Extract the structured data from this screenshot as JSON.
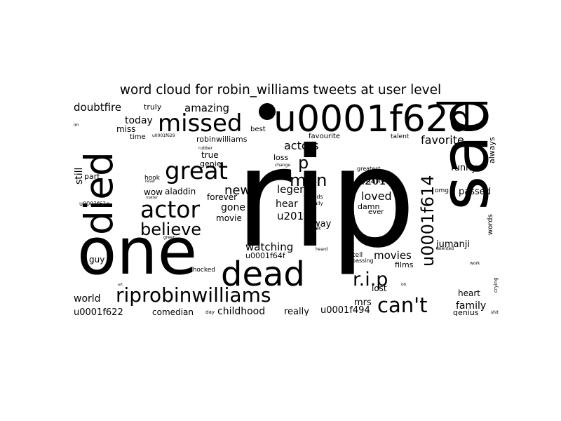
{
  "title": "word cloud for robin_williams tweets at user level",
  "ink_color": "#000000",
  "words": [
    {
      "text": "rip",
      "weight": 100
    },
    {
      "text": "sad",
      "weight": 60
    },
    {
      "text": "one",
      "weight": 58
    },
    {
      "text": "died",
      "weight": 44
    },
    {
      "text": "u0001f62d",
      "weight": 40
    },
    {
      "text": "dead",
      "weight": 36
    },
    {
      "text": "missed",
      "weight": 28
    },
    {
      "text": "great",
      "weight": 26
    },
    {
      "text": "actor",
      "weight": 26
    },
    {
      "text": "riprobinwilliams",
      "weight": 25
    },
    {
      "text": "can't",
      "weight": 24
    },
    {
      "text": "r.i.p",
      "weight": 24
    },
    {
      "text": "believe",
      "weight": 20
    },
    {
      "text": "u0001f614",
      "weight": 19
    },
    {
      "text": "man",
      "weight": 18
    },
    {
      "text": "p",
      "weight": 18
    },
    {
      "text": "news",
      "weight": 15
    },
    {
      "text": "favorite",
      "weight": 14
    },
    {
      "text": "loved",
      "weight": 13
    },
    {
      "text": "u201c",
      "weight": 13
    },
    {
      "text": "actors",
      "weight": 13
    },
    {
      "text": "watching",
      "weight": 12
    },
    {
      "text": "u201d",
      "weight": 12
    },
    {
      "text": "legend",
      "weight": 12
    },
    {
      "text": "movies",
      "weight": 12
    },
    {
      "text": "doubtfire",
      "weight": 12
    },
    {
      "text": "amazing",
      "weight": 12
    },
    {
      "text": "today",
      "weight": 11
    },
    {
      "text": "still",
      "weight": 11
    },
    {
      "text": "family",
      "weight": 11
    },
    {
      "text": "world",
      "weight": 11
    },
    {
      "text": "childhood",
      "weight": 11
    },
    {
      "text": "gone",
      "weight": 11
    },
    {
      "text": "hear",
      "weight": 11
    },
    {
      "text": "jumanji",
      "weight": 10
    },
    {
      "text": "u0001f622",
      "weight": 10
    },
    {
      "text": "mrs",
      "weight": 10
    },
    {
      "text": "really",
      "weight": 10
    },
    {
      "text": "u0001f494",
      "weight": 10
    },
    {
      "text": "away",
      "weight": 10
    },
    {
      "text": "passed",
      "weight": 10
    },
    {
      "text": "funny",
      "weight": 9
    },
    {
      "text": "always",
      "weight": 9
    },
    {
      "text": "heart",
      "weight": 9
    },
    {
      "text": "lost",
      "weight": 9
    },
    {
      "text": "comedian",
      "weight": 9
    },
    {
      "text": "movie",
      "weight": 9
    },
    {
      "text": "miss",
      "weight": 9
    },
    {
      "text": "wow",
      "weight": 9
    },
    {
      "text": "aladdin",
      "weight": 9
    },
    {
      "text": "guy",
      "weight": 9
    },
    {
      "text": "true",
      "weight": 8
    },
    {
      "text": "forever",
      "weight": 8
    },
    {
      "text": "u0001f64f",
      "weight": 8
    },
    {
      "text": "truly",
      "weight": 8
    },
    {
      "text": "robinwilliams",
      "weight": 8
    },
    {
      "text": "films",
      "weight": 8
    },
    {
      "text": "words",
      "weight": 8
    },
    {
      "text": "loss",
      "weight": 8
    },
    {
      "text": "genie",
      "weight": 8
    },
    {
      "text": "many",
      "weight": 8
    },
    {
      "text": "genius",
      "weight": 8
    },
    {
      "text": "damn",
      "weight": 8
    },
    {
      "text": "favourite",
      "weight": 7
    },
    {
      "text": "time",
      "weight": 7
    },
    {
      "text": "best",
      "weight": 7
    },
    {
      "text": "ever",
      "weight": 7
    },
    {
      "text": "talent",
      "weight": 7
    },
    {
      "text": "part",
      "weight": 7
    },
    {
      "text": "shocked",
      "weight": 7
    },
    {
      "text": "hook",
      "weight": 6
    },
    {
      "text": "omg",
      "weight": 6
    },
    {
      "text": "tell",
      "weight": 6
    },
    {
      "text": "passing",
      "weight": 6
    },
    {
      "text": "u0001f61e",
      "weight": 6
    },
    {
      "text": "day",
      "weight": 6
    },
    {
      "text": "greatest",
      "weight": 6
    },
    {
      "text": "friends",
      "weight": 5
    },
    {
      "text": "actually",
      "weight": 5
    },
    {
      "text": "change",
      "weight": 5
    },
    {
      "text": "upset",
      "weight": 5
    },
    {
      "text": "u0001f629",
      "weight": 5
    },
    {
      "text": "heard",
      "weight": 5
    },
    {
      "text": "talented",
      "weight": 5
    },
    {
      "text": "crying",
      "weight": 5
    },
    {
      "text": "work",
      "weight": 5
    },
    {
      "text": "funniest",
      "weight": 5
    },
    {
      "text": "on",
      "weight": 5
    },
    {
      "text": "shit",
      "weight": 5
    },
    {
      "text": "im",
      "weight": 5
    },
    {
      "text": "matter",
      "weight": 5
    },
    {
      "text": "rubber",
      "weight": 5
    },
    {
      "text": "never",
      "weight": 5
    },
    {
      "text": "green",
      "weight": 5
    },
    {
      "text": "art",
      "weight": 5
    }
  ]
}
